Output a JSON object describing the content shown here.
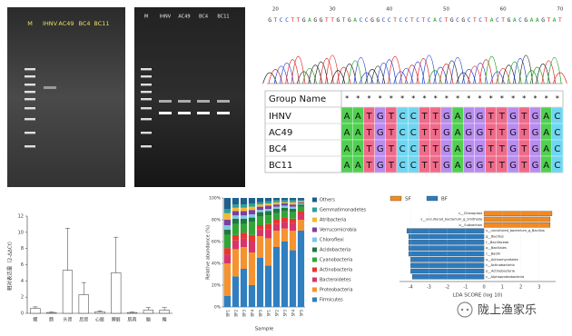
{
  "gels": [
    {
      "lanes": [
        "M",
        "IHNV",
        "AC49",
        "BC4",
        "BC11"
      ]
    },
    {
      "lanes": [
        "M",
        "IHNV",
        "AC49",
        "BC4",
        "BC11"
      ]
    }
  ],
  "sequence": {
    "positions": [
      20,
      30,
      40,
      50,
      60,
      70
    ],
    "bases": "GTCCTTGAGGTTGTGACCGGCCTCCTCTCACTGCGCTCTACTGACGAAGTAT"
  },
  "alignment": {
    "header": "Group Name",
    "consensus": "********************",
    "rows": [
      {
        "name": "IHNV",
        "seq": "AATGTCCTTGAGGTTGTGAC"
      },
      {
        "name": "AC49",
        "seq": "AATGTCCTTGAGGTTGTGAC"
      },
      {
        "name": "BC4",
        "seq": "AATGTCCTTGAGGTTGTGAC"
      },
      {
        "name": "BC11",
        "seq": "AATGTCCTTGAGGTTGTGAC"
      }
    ]
  },
  "chart_data": [
    {
      "type": "bar",
      "y_label": "相对表达量（2-ΔΔCt）",
      "categories": [
        "鳃",
        "肠",
        "头肾",
        "后肾",
        "心脏",
        "脾脏",
        "肌肉",
        "脑",
        "鳍"
      ],
      "values": [
        0.6,
        0.1,
        5.3,
        2.3,
        0.2,
        5.0,
        0.1,
        0.4,
        0.4
      ],
      "errors": [
        0.2,
        0.05,
        5.2,
        1.5,
        0.1,
        4.4,
        0.05,
        0.3,
        0.3
      ],
      "color": "#ffffff",
      "ylim": [
        0,
        12
      ],
      "yticks": [
        0,
        2,
        4,
        6,
        8,
        10,
        12
      ]
    },
    {
      "type": "stacked_bar",
      "x_label": "Sample",
      "y_label": "Relative abundance (%)",
      "categories": [
        "BF1",
        "BF2",
        "BF3",
        "BF4",
        "BF5",
        "SF1",
        "SF2",
        "SF3",
        "SF4",
        "SF5"
      ],
      "ylim": [
        0,
        100
      ],
      "yticks": [
        {
          "value": 0,
          "label": "0%"
        },
        {
          "value": 20,
          "label": "20%"
        },
        {
          "value": 40,
          "label": "40%"
        },
        {
          "value": 60,
          "label": "60%"
        },
        {
          "value": 80,
          "label": "80%"
        },
        {
          "value": 100,
          "label": "100%"
        }
      ],
      "series": [
        {
          "name": "Firmicutes",
          "color": "#2f7fc1",
          "values": [
            10,
            28,
            35,
            20,
            45,
            38,
            55,
            60,
            52,
            70
          ]
        },
        {
          "name": "Proteobacteria",
          "color": "#f59331",
          "values": [
            30,
            25,
            20,
            30,
            20,
            25,
            15,
            12,
            18,
            10
          ]
        },
        {
          "name": "Bacteroidetes",
          "color": "#d9346a",
          "values": [
            8,
            8,
            8,
            10,
            6,
            8,
            6,
            6,
            7,
            5
          ]
        },
        {
          "name": "Actinobacteria",
          "color": "#e8372c",
          "values": [
            6,
            5,
            5,
            6,
            4,
            5,
            4,
            4,
            4,
            3
          ]
        },
        {
          "name": "Cyanobacteria",
          "color": "#33a537",
          "values": [
            12,
            10,
            8,
            12,
            8,
            8,
            6,
            6,
            6,
            4
          ]
        },
        {
          "name": "Acidobacteria",
          "color": "#1d7a3c",
          "values": [
            5,
            5,
            5,
            4,
            4,
            4,
            4,
            3,
            3,
            2
          ]
        },
        {
          "name": "Chloroflexi",
          "color": "#7cc7e8",
          "values": [
            4,
            3,
            3,
            3,
            2,
            2,
            2,
            2,
            2,
            1
          ]
        },
        {
          "name": "Verrucomicrobia",
          "color": "#7b3f9e",
          "values": [
            5,
            4,
            4,
            4,
            3,
            3,
            2,
            2,
            2,
            1
          ]
        },
        {
          "name": "Atribacteria",
          "color": "#f6b82f",
          "values": [
            6,
            3,
            3,
            3,
            2,
            2,
            2,
            1,
            2,
            1
          ]
        },
        {
          "name": "Gemmatimonadetes",
          "color": "#2aa198",
          "values": [
            4,
            3,
            3,
            3,
            2,
            2,
            2,
            2,
            2,
            1
          ]
        },
        {
          "name": "Others",
          "color": "#1f5f8b",
          "values": [
            10,
            6,
            6,
            5,
            4,
            3,
            2,
            2,
            2,
            2
          ]
        }
      ]
    },
    {
      "type": "lda",
      "x_label": "LDA SCORE (log 10)",
      "xlim": [
        -4.6,
        3.9
      ],
      "xticks": [
        -4,
        -3,
        -2,
        -1,
        0,
        1,
        2,
        3
      ],
      "series": [
        {
          "name": "SF",
          "color": "#f08a24",
          "features": [
            "c__Chloroplast",
            "s__uncultured_bacterium_g_Smithella",
            "o__Subsection"
          ],
          "values": [
            3.7,
            3.6,
            3.6
          ]
        },
        {
          "name": "BF",
          "color": "#2b7bbf",
          "features": [
            "s__uncultured_bacterium_g_Bacillus",
            "g__Bacillus",
            "f__Bacillaceae",
            "o__Bacillales",
            "c__Bacilli",
            "o__Actinomycetales",
            "c__Actinobacteria",
            "p__Actinobacteria",
            "c__Alphaproteobacteria"
          ],
          "values": [
            -4.2,
            -4.1,
            -4.1,
            -4.1,
            -4.1,
            -4.0,
            -4.0,
            -4.0,
            -3.9
          ]
        }
      ]
    }
  ],
  "watermark": "陇上渔家乐"
}
